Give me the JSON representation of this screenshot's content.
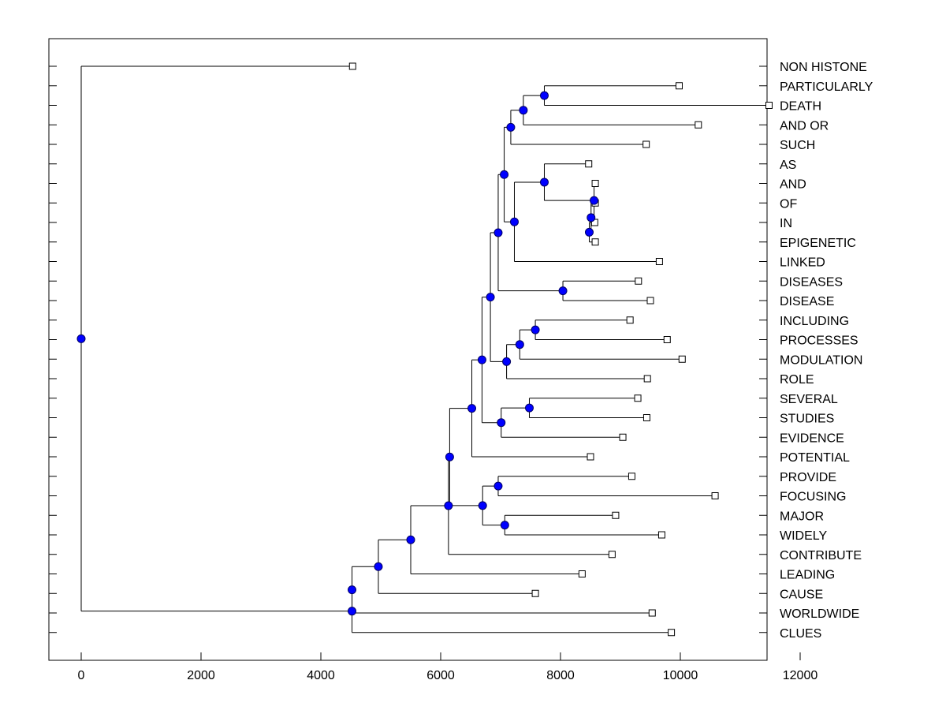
{
  "chart_data": {
    "type": "dendrogram",
    "x_axis": {
      "range": [
        -600,
        12000
      ],
      "ticks": [
        0,
        2000,
        4000,
        6000,
        8000,
        10000,
        12000
      ],
      "tick_labels": [
        "0",
        "2000",
        "4000",
        "6000",
        "8000",
        "10000",
        "12000"
      ]
    },
    "leaves": [
      {
        "label": "NON HISTONE",
        "x": 4530
      },
      {
        "label": "PARTICULARLY",
        "x": 9980
      },
      {
        "label": "DEATH",
        "x": 11480
      },
      {
        "label": "AND OR",
        "x": 10300
      },
      {
        "label": "SUCH",
        "x": 9430
      },
      {
        "label": "AS",
        "x": 8470
      },
      {
        "label": "AND",
        "x": 8580
      },
      {
        "label": "OF",
        "x": 8580
      },
      {
        "label": "IN",
        "x": 8570
      },
      {
        "label": "EPIGENETIC",
        "x": 8580
      },
      {
        "label": "LINKED",
        "x": 9650
      },
      {
        "label": "DISEASES",
        "x": 9300
      },
      {
        "label": "DISEASE",
        "x": 9500
      },
      {
        "label": "INCLUDING",
        "x": 9160
      },
      {
        "label": "PROCESSES",
        "x": 9780
      },
      {
        "label": "MODULATION",
        "x": 10030
      },
      {
        "label": "ROLE",
        "x": 9450
      },
      {
        "label": "SEVERAL",
        "x": 9290
      },
      {
        "label": "STUDIES",
        "x": 9440
      },
      {
        "label": "EVIDENCE",
        "x": 9040
      },
      {
        "label": "POTENTIAL",
        "x": 8500
      },
      {
        "label": "PROVIDE",
        "x": 9190
      },
      {
        "label": "FOCUSING",
        "x": 10580
      },
      {
        "label": "MAJOR",
        "x": 8920
      },
      {
        "label": "WIDELY",
        "x": 9690
      },
      {
        "label": "CONTRIBUTE",
        "x": 8860
      },
      {
        "label": "LEADING",
        "x": 8360
      },
      {
        "label": "CAUSE",
        "x": 7580
      },
      {
        "label": "WORLDWIDE",
        "x": 9530
      },
      {
        "label": "CLUES",
        "x": 9850
      }
    ],
    "merges": [
      {
        "x": 8480,
        "children": [
          "L8",
          "L9"
        ]
      },
      {
        "x": 8510,
        "children": [
          "N0",
          "L7"
        ]
      },
      {
        "x": 8560,
        "children": [
          "N1",
          "L6"
        ]
      },
      {
        "x": 7730,
        "children": [
          "L5",
          "N2"
        ]
      },
      {
        "x": 7730,
        "children": [
          "L1",
          "L2"
        ]
      },
      {
        "x": 7380,
        "children": [
          "N4",
          "L3"
        ]
      },
      {
        "x": 7170,
        "children": [
          "N5",
          "L4"
        ]
      },
      {
        "x": 7230,
        "children": [
          "N3",
          "L10"
        ]
      },
      {
        "x": 7060,
        "children": [
          "N6",
          "N7"
        ]
      },
      {
        "x": 8040,
        "children": [
          "L11",
          "L12"
        ]
      },
      {
        "x": 6960,
        "children": [
          "N8",
          "N9"
        ]
      },
      {
        "x": 7580,
        "children": [
          "L13",
          "L14"
        ]
      },
      {
        "x": 7320,
        "children": [
          "N11",
          "L15"
        ]
      },
      {
        "x": 7100,
        "children": [
          "N12",
          "L16"
        ]
      },
      {
        "x": 6830,
        "children": [
          "N10",
          "N13"
        ]
      },
      {
        "x": 7480,
        "children": [
          "L17",
          "L18"
        ]
      },
      {
        "x": 7010,
        "children": [
          "N15",
          "L19"
        ]
      },
      {
        "x": 6690,
        "children": [
          "N14",
          "N16"
        ]
      },
      {
        "x": 6520,
        "children": [
          "N17",
          "L20"
        ]
      },
      {
        "x": 6960,
        "children": [
          "L21",
          "L22"
        ]
      },
      {
        "x": 7070,
        "children": [
          "L23",
          "L24"
        ]
      },
      {
        "x": 6700,
        "children": [
          "N19",
          "N20"
        ]
      },
      {
        "x": 6150,
        "children": [
          "N18",
          "N21"
        ]
      },
      {
        "x": 6130,
        "children": [
          "N22",
          "L25"
        ]
      },
      {
        "x": 5500,
        "children": [
          "N23",
          "L26"
        ]
      },
      {
        "x": 4960,
        "children": [
          "N24",
          "L27"
        ]
      },
      {
        "x": 4520,
        "children": [
          "N25",
          "L28"
        ]
      },
      {
        "x": 4520,
        "children": [
          "N26",
          "L29"
        ]
      },
      {
        "x": 0,
        "children": [
          "L0",
          "N27"
        ]
      }
    ],
    "colors": {
      "node": "#0000ff",
      "line": "#000000",
      "leaf_marker": "#ffffff"
    }
  }
}
